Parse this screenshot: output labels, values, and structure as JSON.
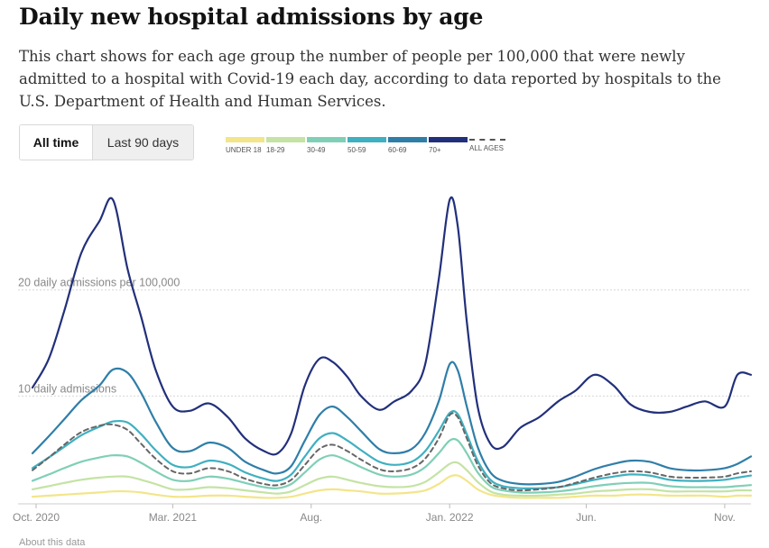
{
  "header": {
    "title": "Daily new hospital admissions by age",
    "description": "This chart shows for each age group the number of people per 100,000 that were newly admitted to a hospital with Covid-19 each day, according to data reported by hospitals to the U.S. Department of Health and Human Services."
  },
  "toggle": {
    "all_time": "All time",
    "last_90_days": "Last 90 days",
    "selected": "All time"
  },
  "footer": {
    "about": "About this data"
  },
  "colors": {
    "under18": "#f3e58a",
    "18_29": "#c4e3a4",
    "30_49": "#7fcfb6",
    "50_59": "#3fb0c0",
    "60_69": "#2f7ea8",
    "70_plus": "#22307b",
    "all_ages": "#666666"
  },
  "chart_data": {
    "type": "line",
    "title": "Daily new hospital admissions by age",
    "ylabel": "daily admissions per 100,000",
    "ylim": [
      0,
      29.5
    ],
    "y_gridlines": [
      {
        "value": 10,
        "label": "10 daily admissions"
      },
      {
        "value": 20,
        "label": "20 daily admissions per 100,000"
      }
    ],
    "x_ticks": [
      {
        "date": "2020-10-01",
        "label": "Oct. 2020"
      },
      {
        "date": "2021-03-01",
        "label": "Mar. 2021"
      },
      {
        "date": "2021-08-01",
        "label": "Aug."
      },
      {
        "date": "2022-01-01",
        "label": "Jan. 2022"
      },
      {
        "date": "2022-06-01",
        "label": "Jun."
      },
      {
        "date": "2022-11-01",
        "label": "Nov."
      }
    ],
    "xlim": [
      "2020-09-27",
      "2022-11-30"
    ],
    "legend_position": "top",
    "x": [
      "2020-09-27",
      "2020-10-15",
      "2020-11-01",
      "2020-11-20",
      "2020-12-10",
      "2020-12-25",
      "2021-01-10",
      "2021-01-25",
      "2021-02-10",
      "2021-03-01",
      "2021-03-20",
      "2021-04-10",
      "2021-05-01",
      "2021-05-20",
      "2021-06-10",
      "2021-06-25",
      "2021-07-10",
      "2021-07-25",
      "2021-08-10",
      "2021-08-25",
      "2021-09-10",
      "2021-09-25",
      "2021-10-15",
      "2021-11-01",
      "2021-11-20",
      "2021-12-05",
      "2021-12-20",
      "2022-01-01",
      "2022-01-10",
      "2022-01-20",
      "2022-02-01",
      "2022-02-15",
      "2022-03-01",
      "2022-03-20",
      "2022-04-10",
      "2022-05-01",
      "2022-05-20",
      "2022-06-10",
      "2022-07-01",
      "2022-07-20",
      "2022-08-10",
      "2022-09-01",
      "2022-09-20",
      "2022-10-10",
      "2022-11-01",
      "2022-11-15",
      "2022-11-30"
    ],
    "series": [
      {
        "name": "UNDER 18",
        "color": "#f3e58a",
        "values": [
          0.5,
          0.6,
          0.7,
          0.8,
          0.9,
          1.0,
          1.0,
          0.9,
          0.7,
          0.5,
          0.5,
          0.6,
          0.6,
          0.5,
          0.4,
          0.4,
          0.5,
          0.8,
          1.1,
          1.2,
          1.1,
          1.0,
          0.8,
          0.8,
          0.9,
          1.1,
          1.7,
          2.4,
          2.5,
          2.0,
          1.2,
          0.7,
          0.5,
          0.4,
          0.4,
          0.4,
          0.5,
          0.6,
          0.6,
          0.7,
          0.7,
          0.6,
          0.6,
          0.6,
          0.5,
          0.6,
          0.6
        ]
      },
      {
        "name": "18-29",
        "color": "#c4e3a4",
        "values": [
          1.2,
          1.5,
          1.8,
          2.1,
          2.3,
          2.4,
          2.4,
          2.1,
          1.7,
          1.2,
          1.2,
          1.4,
          1.3,
          1.1,
          0.9,
          0.8,
          1.0,
          1.6,
          2.2,
          2.4,
          2.1,
          1.8,
          1.5,
          1.4,
          1.5,
          1.9,
          2.8,
          3.6,
          3.7,
          3.0,
          1.9,
          1.0,
          0.7,
          0.6,
          0.6,
          0.7,
          0.8,
          1.0,
          1.1,
          1.2,
          1.2,
          1.0,
          1.0,
          1.0,
          1.0,
          1.1,
          1.1
        ]
      },
      {
        "name": "30-49",
        "color": "#7fcfb6",
        "values": [
          2.0,
          2.6,
          3.2,
          3.8,
          4.2,
          4.4,
          4.3,
          3.7,
          2.9,
          2.1,
          2.0,
          2.4,
          2.2,
          1.8,
          1.4,
          1.3,
          1.7,
          2.8,
          4.0,
          4.4,
          3.9,
          3.3,
          2.6,
          2.4,
          2.6,
          3.3,
          4.6,
          5.8,
          5.8,
          4.6,
          2.8,
          1.5,
          1.1,
          0.9,
          0.9,
          1.0,
          1.2,
          1.5,
          1.7,
          1.8,
          1.8,
          1.5,
          1.4,
          1.4,
          1.4,
          1.5,
          1.6
        ]
      },
      {
        "name": "50-59",
        "color": "#3fb0c0",
        "values": [
          3.2,
          4.2,
          5.2,
          6.3,
          7.1,
          7.6,
          7.5,
          6.4,
          4.9,
          3.5,
          3.3,
          3.9,
          3.6,
          2.8,
          2.2,
          2.0,
          2.6,
          4.3,
          6.0,
          6.5,
          5.8,
          4.9,
          3.8,
          3.5,
          3.8,
          4.8,
          6.7,
          8.4,
          8.3,
          6.4,
          3.9,
          2.1,
          1.5,
          1.3,
          1.3,
          1.4,
          1.7,
          2.1,
          2.4,
          2.6,
          2.5,
          2.1,
          2.0,
          2.0,
          2.1,
          2.3,
          2.5
        ]
      },
      {
        "name": "60-69",
        "color": "#2f7ea8",
        "values": [
          4.6,
          6.2,
          7.8,
          9.6,
          11.0,
          12.5,
          12.2,
          10.3,
          7.6,
          5.1,
          4.8,
          5.6,
          5.1,
          3.8,
          3.0,
          2.7,
          3.4,
          5.8,
          8.2,
          9.0,
          8.0,
          6.7,
          5.0,
          4.6,
          5.0,
          6.5,
          9.5,
          13.0,
          12.4,
          9.0,
          5.2,
          2.8,
          2.0,
          1.7,
          1.7,
          1.9,
          2.4,
          3.1,
          3.6,
          3.9,
          3.8,
          3.2,
          3.0,
          3.0,
          3.2,
          3.6,
          4.3
        ]
      },
      {
        "name": "70+",
        "color": "#22307b",
        "values": [
          10.8,
          13.5,
          18.0,
          23.5,
          26.5,
          28.5,
          22.0,
          17.5,
          12.5,
          9.0,
          8.6,
          9.3,
          8.0,
          6.0,
          4.8,
          4.6,
          6.5,
          11.0,
          13.5,
          13.2,
          11.8,
          10.0,
          8.7,
          9.5,
          10.5,
          13.0,
          21.0,
          28.5,
          26.0,
          17.0,
          9.0,
          5.5,
          5.2,
          7.0,
          8.0,
          9.5,
          10.5,
          12.0,
          11.0,
          9.2,
          8.5,
          8.5,
          9.0,
          9.5,
          9.0,
          12.0,
          12.0
        ]
      },
      {
        "name": "ALL AGES",
        "color": "#666666",
        "dashed": true,
        "values": [
          3.0,
          4.2,
          5.4,
          6.6,
          7.2,
          7.3,
          6.8,
          5.5,
          4.1,
          2.9,
          2.7,
          3.2,
          2.9,
          2.2,
          1.7,
          1.6,
          2.1,
          3.5,
          5.0,
          5.4,
          4.8,
          4.0,
          3.1,
          2.9,
          3.2,
          4.1,
          6.0,
          8.2,
          8.0,
          6.0,
          3.5,
          1.8,
          1.3,
          1.1,
          1.2,
          1.4,
          1.8,
          2.3,
          2.7,
          2.9,
          2.8,
          2.4,
          2.3,
          2.3,
          2.4,
          2.7,
          2.9
        ]
      }
    ]
  }
}
